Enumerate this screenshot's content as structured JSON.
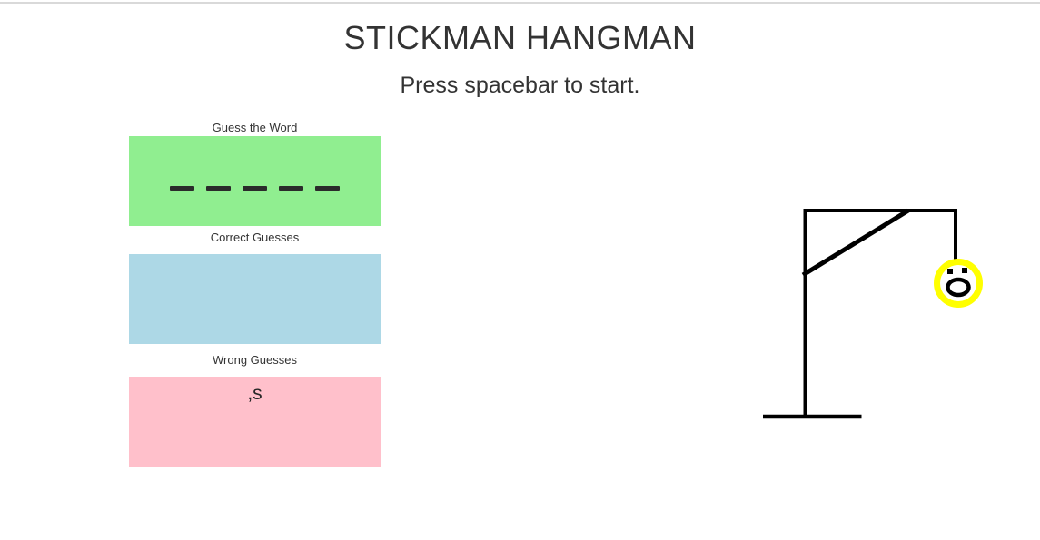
{
  "header": {
    "title": "STICKMAN HANGMAN",
    "subtitle": "Press spacebar to start."
  },
  "panels": {
    "guess": {
      "label": "Guess the Word",
      "masked_letters": [
        "_",
        "_",
        "_",
        "_",
        "_"
      ],
      "bg_color": "#90EE90",
      "dash_color": "#2b2b2b"
    },
    "correct": {
      "label": "Correct Guesses",
      "entries_text": "",
      "bg_color": "#ADD8E6"
    },
    "wrong": {
      "label": "Wrong Guesses",
      "entries_text": ",s",
      "bg_color": "#FFC0CB"
    }
  },
  "hangman": {
    "line_color": "#000000",
    "head": {
      "ring_color": "#FFFF00",
      "face_fill": "#ffffff",
      "eye_color": "#000000",
      "mouth_color": "#000000"
    }
  }
}
